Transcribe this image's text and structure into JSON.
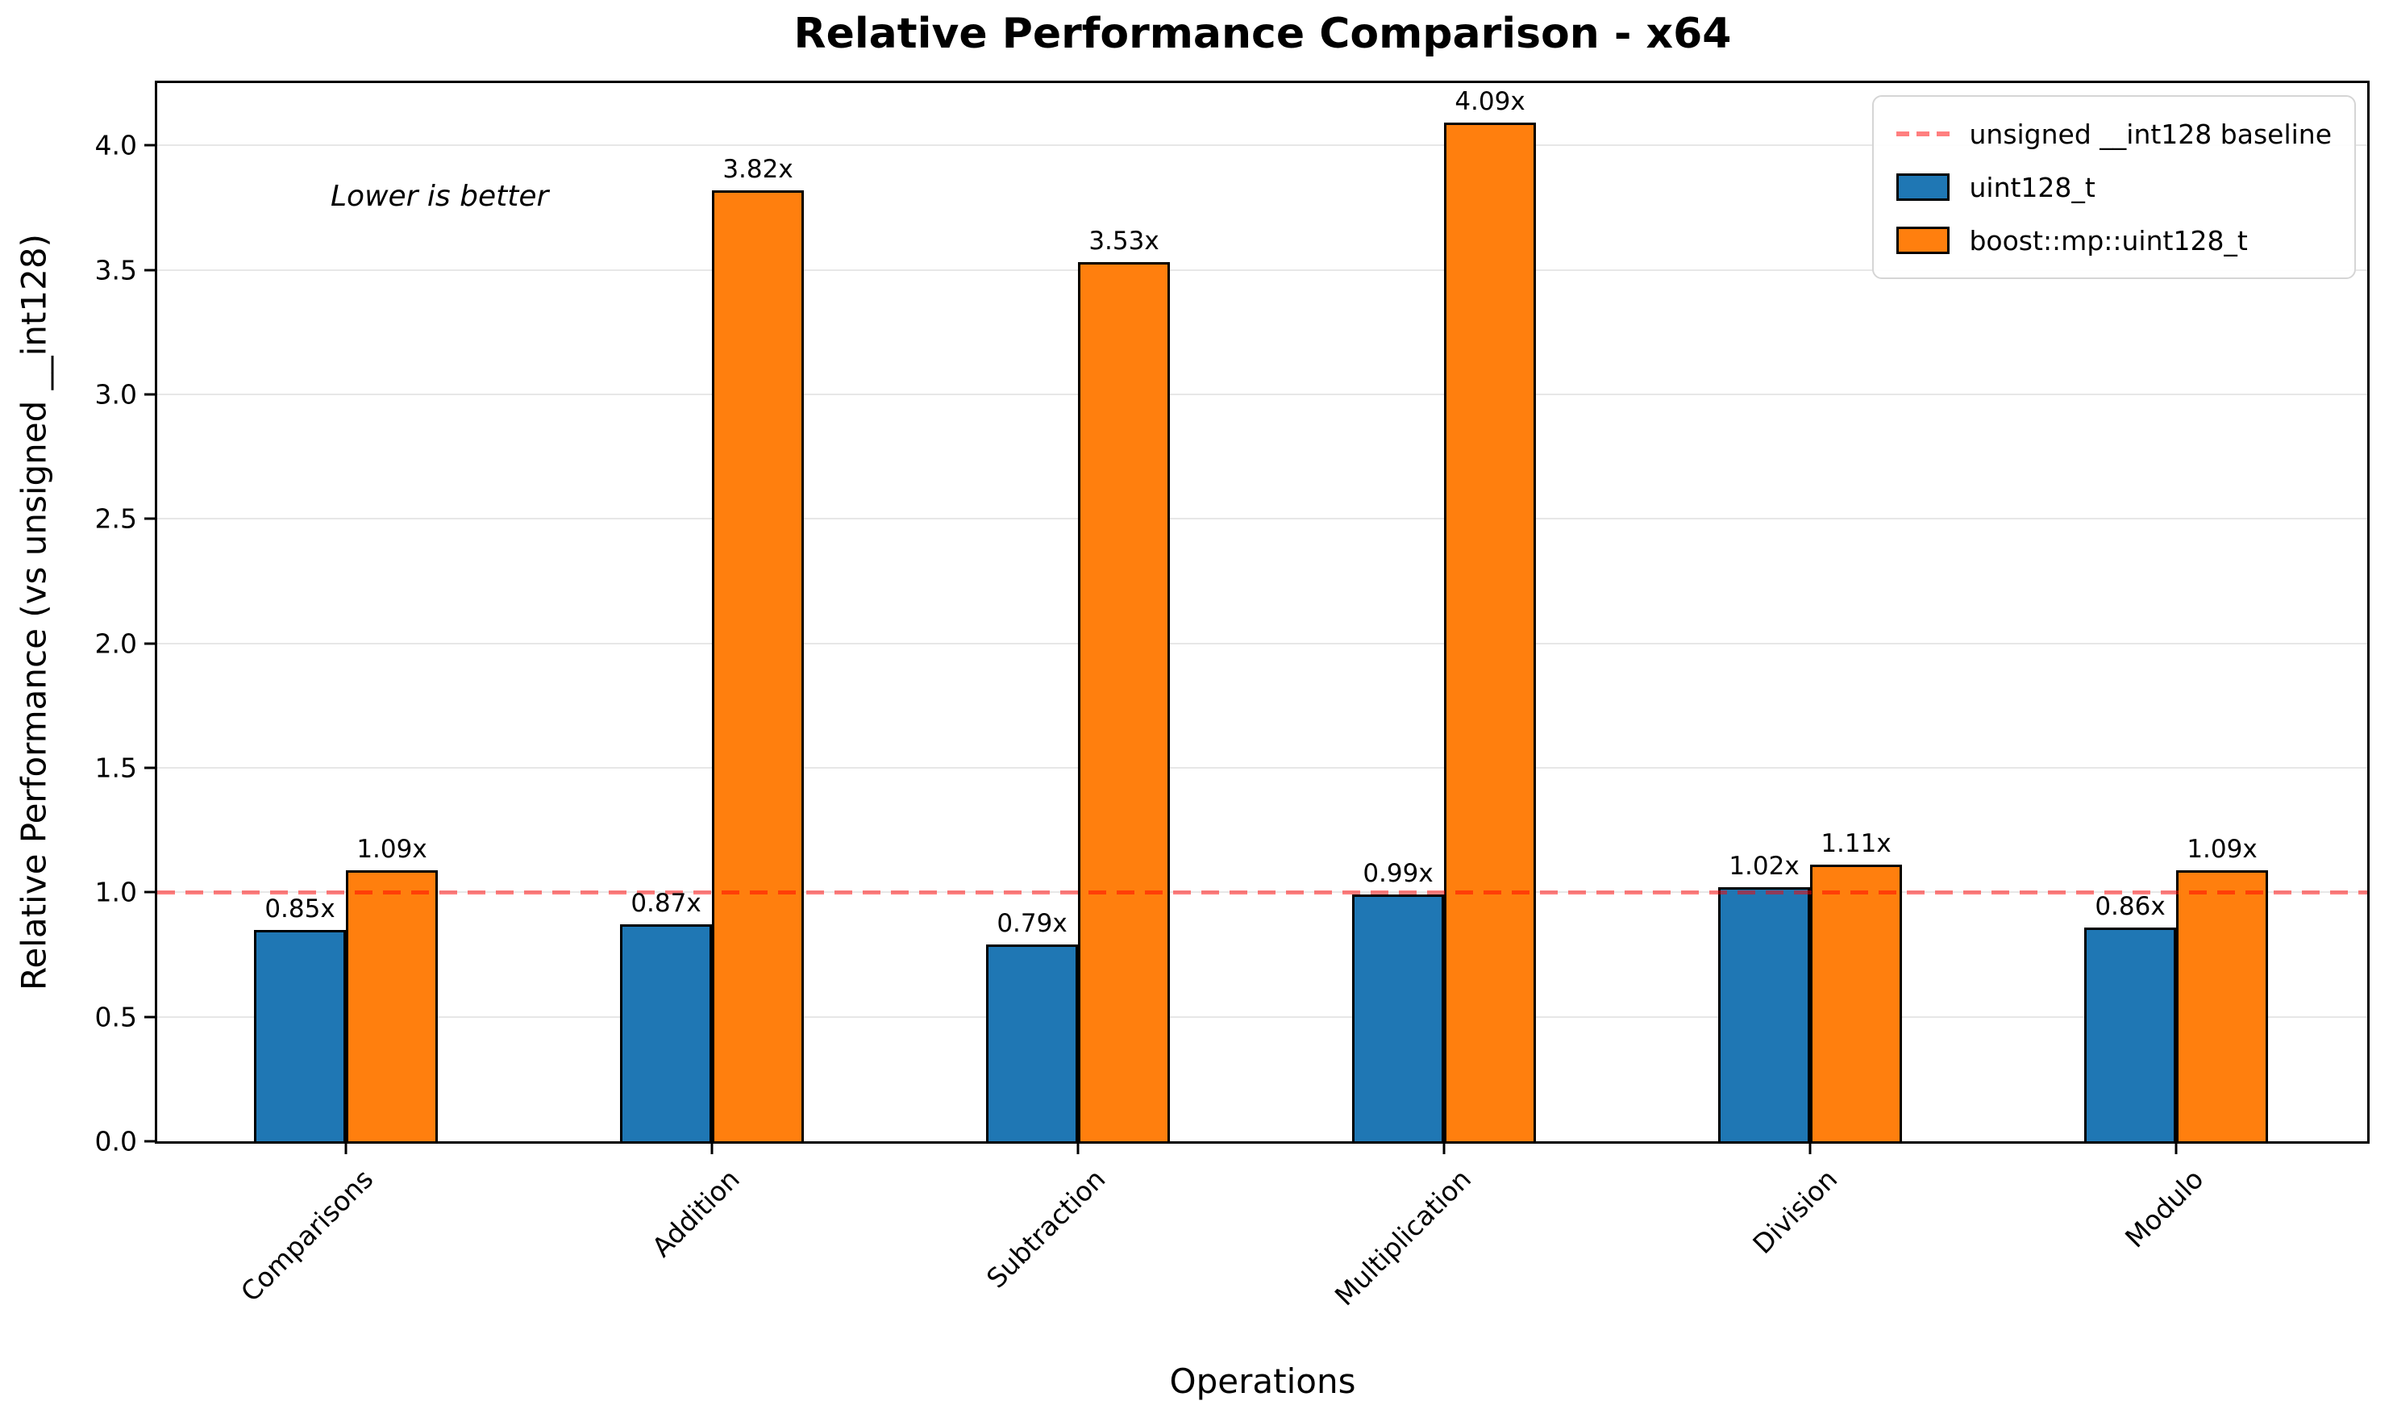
{
  "title": "Relative Performance Comparison - x64",
  "annotation": "Lower is better",
  "legend": {
    "items": [
      {
        "label": "unsigned __int128 baseline",
        "swatch": "red-dashed-line"
      },
      {
        "label": "uint128_t",
        "swatch": "blue-box"
      },
      {
        "label": "boost::mp::uint128_t",
        "swatch": "orange-box"
      }
    ]
  },
  "colors": {
    "series1": "#1f77b4",
    "series2": "#ff7f0e",
    "baseline": "#ff8080",
    "gridline": "#e7e7e7"
  },
  "chart_data": {
    "type": "bar",
    "title": "Relative Performance Comparison - x64",
    "xlabel": "Operations",
    "ylabel": "Relative Performance (vs unsigned __int128)",
    "categories": [
      "Comparisons",
      "Addition",
      "Subtraction",
      "Multiplication",
      "Division",
      "Modulo"
    ],
    "series": [
      {
        "name": "uint128_t",
        "color": "#1f77b4",
        "values": [
          0.85,
          0.87,
          0.79,
          0.99,
          1.02,
          0.86
        ]
      },
      {
        "name": "boost::mp::uint128_t",
        "color": "#ff7f0e",
        "values": [
          1.09,
          3.82,
          3.53,
          4.09,
          1.11,
          1.09
        ]
      }
    ],
    "bar_labels": [
      [
        "0.85x",
        "0.87x",
        "0.79x",
        "0.99x",
        "1.02x",
        "0.86x"
      ],
      [
        "1.09x",
        "3.82x",
        "3.53x",
        "4.09x",
        "1.11x",
        "1.09x"
      ]
    ],
    "baseline": {
      "value": 1.0,
      "label": "unsigned __int128 baseline",
      "style": "dashed"
    },
    "annotation": "Lower is better",
    "ylim": [
      0,
      4.25
    ],
    "yticks": [
      "0.0",
      "0.5",
      "1.0",
      "1.5",
      "2.0",
      "2.5",
      "3.0",
      "3.5",
      "4.0"
    ],
    "grid": true,
    "legend_position": "upper right"
  }
}
